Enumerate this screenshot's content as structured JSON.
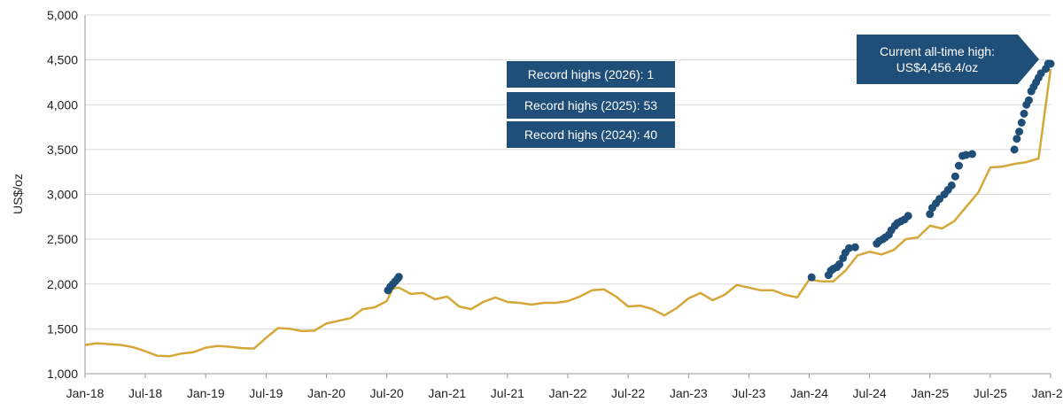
{
  "chart_data": {
    "type": "line",
    "title": "",
    "ylabel": "US$/oz",
    "xlabel": "",
    "ylim": [
      1000,
      5000
    ],
    "yticks": [
      1000,
      1500,
      2000,
      2500,
      3000,
      3500,
      4000,
      4500,
      5000
    ],
    "ytick_labels": [
      "1,000",
      "1,500",
      "2,000",
      "2,500",
      "3,000",
      "3,500",
      "4,000",
      "4,500",
      "5,000"
    ],
    "xlim": [
      2018.0,
      2026.0
    ],
    "xticks": [
      2018.0,
      2018.5,
      2019.0,
      2019.5,
      2020.0,
      2020.5,
      2021.0,
      2021.5,
      2022.0,
      2022.5,
      2023.0,
      2023.5,
      2024.0,
      2024.5,
      2025.0,
      2025.5,
      2026.0
    ],
    "xtick_labels": [
      "Jan-18",
      "Jul-18",
      "Jan-19",
      "Jul-19",
      "Jan-20",
      "Jul-20",
      "Jan-21",
      "Jul-21",
      "Jan-22",
      "Jul-22",
      "Jan-23",
      "Jul-23",
      "Jan-24",
      "Jul-24",
      "Jan-25",
      "Jul-25",
      "Jan-26"
    ],
    "grid": "horizontal",
    "series": [
      {
        "color": "#d4a838",
        "x": [
          2018.0,
          2018.1,
          2018.2,
          2018.3,
          2018.4,
          2018.5,
          2018.6,
          2018.7,
          2018.8,
          2018.9,
          2019.0,
          2019.1,
          2019.2,
          2019.3,
          2019.4,
          2019.5,
          2019.6,
          2019.7,
          2019.8,
          2019.9,
          2020.0,
          2020.1,
          2020.2,
          2020.3,
          2020.4,
          2020.5,
          2020.55,
          2020.6,
          2020.7,
          2020.8,
          2020.9,
          2021.0,
          2021.1,
          2021.2,
          2021.3,
          2021.4,
          2021.5,
          2021.6,
          2021.7,
          2021.8,
          2021.9,
          2022.0,
          2022.1,
          2022.2,
          2022.3,
          2022.4,
          2022.5,
          2022.6,
          2022.7,
          2022.8,
          2022.9,
          2023.0,
          2023.1,
          2023.2,
          2023.3,
          2023.4,
          2023.5,
          2023.6,
          2023.7,
          2023.8,
          2023.9,
          2024.0,
          2024.1,
          2024.2,
          2024.3,
          2024.4,
          2024.5,
          2024.6,
          2024.7,
          2024.8,
          2024.9,
          2025.0,
          2025.1,
          2025.2,
          2025.3,
          2025.4,
          2025.5,
          2025.6,
          2025.7,
          2025.8,
          2025.9,
          2026.0
        ],
        "y": [
          1320,
          1340,
          1330,
          1320,
          1295,
          1250,
          1200,
          1195,
          1225,
          1240,
          1290,
          1310,
          1300,
          1285,
          1280,
          1400,
          1510,
          1500,
          1475,
          1480,
          1560,
          1590,
          1620,
          1720,
          1740,
          1810,
          1950,
          1960,
          1890,
          1900,
          1830,
          1860,
          1750,
          1720,
          1800,
          1850,
          1800,
          1790,
          1770,
          1790,
          1790,
          1810,
          1860,
          1930,
          1940,
          1860,
          1750,
          1760,
          1720,
          1650,
          1730,
          1840,
          1900,
          1820,
          1880,
          1990,
          1960,
          1930,
          1930,
          1880,
          1850,
          2050,
          2030,
          2030,
          2150,
          2320,
          2360,
          2330,
          2380,
          2500,
          2520,
          2650,
          2620,
          2700,
          2860,
          3020,
          3300,
          3310,
          3340,
          3360,
          3400,
          4400
        ]
      }
    ],
    "record_highs": {
      "color": "#1f4e79",
      "x": [
        2020.51,
        2020.53,
        2020.55,
        2020.57,
        2020.59,
        2020.6,
        2024.02,
        2024.16,
        2024.18,
        2024.2,
        2024.23,
        2024.25,
        2024.28,
        2024.3,
        2024.33,
        2024.38,
        2024.56,
        2024.58,
        2024.61,
        2024.63,
        2024.66,
        2024.68,
        2024.71,
        2024.73,
        2024.76,
        2024.79,
        2024.82,
        2025.0,
        2025.02,
        2025.05,
        2025.08,
        2025.12,
        2025.15,
        2025.18,
        2025.21,
        2025.24,
        2025.27,
        2025.3,
        2025.35,
        2025.7,
        2025.72,
        2025.74,
        2025.76,
        2025.78,
        2025.8,
        2025.82,
        2025.84,
        2025.86,
        2025.88,
        2025.9,
        2025.92,
        2025.96,
        2025.98,
        2026.0
      ],
      "y": [
        1930,
        1970,
        2000,
        2030,
        2060,
        2080,
        2075,
        2100,
        2150,
        2170,
        2190,
        2220,
        2290,
        2350,
        2400,
        2410,
        2450,
        2480,
        2500,
        2520,
        2550,
        2600,
        2650,
        2680,
        2700,
        2720,
        2760,
        2780,
        2850,
        2900,
        2950,
        3000,
        3050,
        3100,
        3200,
        3320,
        3430,
        3440,
        3450,
        3500,
        3620,
        3700,
        3800,
        3900,
        4000,
        4050,
        4150,
        4200,
        4250,
        4300,
        4350,
        4400,
        4456.4,
        4456.4
      ]
    },
    "annotations": [
      "Record highs  (2026): 1",
      "Record highs  (2025): 53",
      "Record highs  (2024): 40"
    ],
    "callout": {
      "line1": "Current all-time high:",
      "line2": "US$4,456.4/oz"
    }
  }
}
